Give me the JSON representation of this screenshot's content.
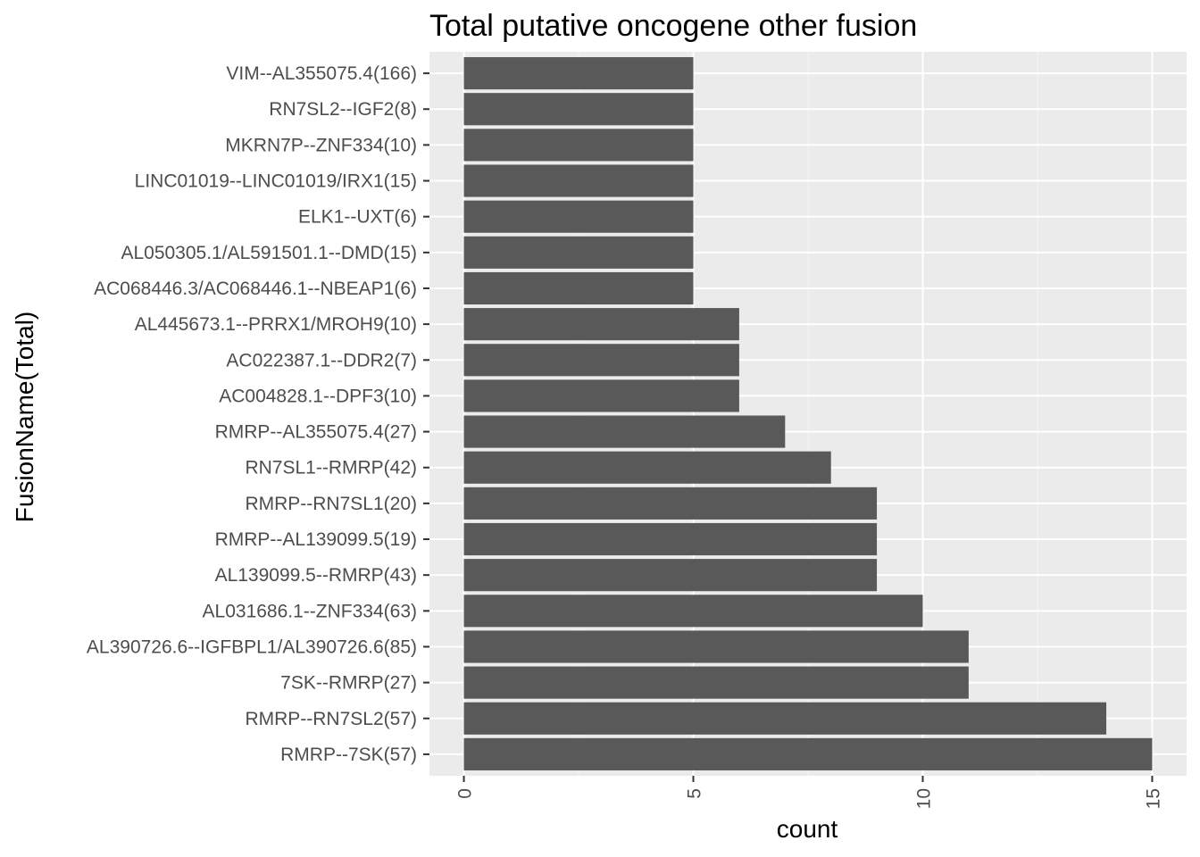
{
  "chart_data": {
    "type": "bar",
    "orientation": "horizontal",
    "title": "Total putative oncogene other fusion",
    "xlabel": "count",
    "ylabel": "FusionName(Total)",
    "xlim": [
      -0.75,
      15.75
    ],
    "xticks": [
      0,
      5,
      10,
      15
    ],
    "xtick_labels": [
      "0",
      "5",
      "10",
      "15"
    ],
    "grid": true,
    "legend": "none",
    "categories": [
      "VIM--AL355075.4(166)",
      "RN7SL2--IGF2(8)",
      "MKRN7P--ZNF334(10)",
      "LINC01019--LINC01019/IRX1(15)",
      "ELK1--UXT(6)",
      "AL050305.1/AL591501.1--DMD(15)",
      "AC068446.3/AC068446.1--NBEAP1(6)",
      "AL445673.1--PRRX1/MROH9(10)",
      "AC022387.1--DDR2(7)",
      "AC004828.1--DPF3(10)",
      "RMRP--AL355075.4(27)",
      "RN7SL1--RMRP(42)",
      "RMRP--RN7SL1(20)",
      "RMRP--AL139099.5(19)",
      "AL139099.5--RMRP(43)",
      "AL031686.1--ZNF334(63)",
      "AL390726.6--IGFBPL1/AL390726.6(85)",
      "7SK--RMRP(27)",
      "RMRP--RN7SL2(57)",
      "RMRP--7SK(57)"
    ],
    "values": [
      5,
      5,
      5,
      5,
      5,
      5,
      5,
      6,
      6,
      6,
      7,
      8,
      9,
      9,
      9,
      10,
      11,
      11,
      14,
      15
    ],
    "colors": {
      "bar": "#595959",
      "panel": "#ebebeb",
      "grid_major": "#ffffff",
      "grid_minor": "#f5f5f5",
      "tick": "#333333",
      "tick_label": "#4d4d4d"
    }
  }
}
